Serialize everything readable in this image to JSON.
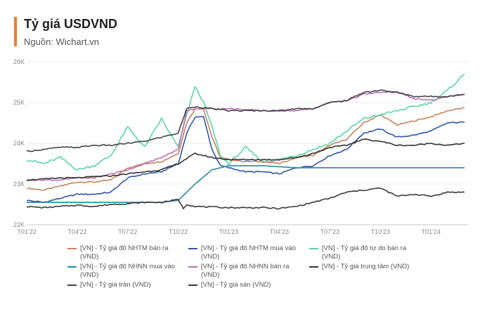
{
  "header": {
    "title": "Tỷ giá USDVND",
    "source": "Nguồn: Wichart.vn",
    "accent_color": "#f07a26"
  },
  "chart_data": {
    "type": "line",
    "title": "Tỷ giá USDVND",
    "xlabel": "",
    "ylabel": "",
    "ylim": [
      22000,
      26000
    ],
    "y_ticks": [
      22000,
      23000,
      24000,
      25000,
      26000
    ],
    "y_tick_labels": [
      "22K",
      "23K",
      "24K",
      "25K",
      "26K"
    ],
    "x_range": [
      "2022-01",
      "2024-05"
    ],
    "x_ticks": [
      "T01'22",
      "T04'22",
      "T07'22",
      "T10'22",
      "T01'23",
      "T04'23",
      "T07'23",
      "T10'23",
      "T01'24"
    ],
    "grid": true,
    "legend_position": "bottom",
    "series": [
      {
        "name": "[VN] - Tỷ giá đô NHTM bán ra (VND)",
        "color": "#c8845a",
        "points": [
          [
            0,
            22900
          ],
          [
            1,
            22850
          ],
          [
            2,
            22950
          ],
          [
            3,
            23050
          ],
          [
            4,
            23050
          ],
          [
            5,
            23100
          ],
          [
            6,
            23400
          ],
          [
            7,
            23500
          ],
          [
            8,
            23550
          ],
          [
            9,
            23750
          ],
          [
            9.5,
            24500
          ],
          [
            10,
            24850
          ],
          [
            10.5,
            24850
          ],
          [
            11,
            24150
          ],
          [
            11.5,
            23650
          ],
          [
            12,
            23600
          ],
          [
            13,
            23550
          ],
          [
            14,
            23550
          ],
          [
            15,
            23500
          ],
          [
            16,
            23650
          ],
          [
            17,
            23700
          ],
          [
            18,
            23950
          ],
          [
            19,
            24100
          ],
          [
            20,
            24500
          ],
          [
            21,
            24700
          ],
          [
            22,
            24450
          ],
          [
            23,
            24550
          ],
          [
            24,
            24650
          ],
          [
            25,
            24800
          ],
          [
            26,
            24870
          ]
        ]
      },
      {
        "name": "[VN] - Tỷ giá đô NHTM mua vào (VND)",
        "color": "#2d56a8",
        "points": [
          [
            0,
            22600
          ],
          [
            1,
            22550
          ],
          [
            2,
            22650
          ],
          [
            3,
            22750
          ],
          [
            4,
            22750
          ],
          [
            5,
            22800
          ],
          [
            6,
            23150
          ],
          [
            7,
            23250
          ],
          [
            8,
            23300
          ],
          [
            9,
            23500
          ],
          [
            9.5,
            24250
          ],
          [
            10,
            24650
          ],
          [
            10.5,
            24650
          ],
          [
            11,
            23850
          ],
          [
            11.5,
            23450
          ],
          [
            12,
            23400
          ],
          [
            13,
            23300
          ],
          [
            14,
            23300
          ],
          [
            15,
            23250
          ],
          [
            16,
            23400
          ],
          [
            17,
            23450
          ],
          [
            18,
            23700
          ],
          [
            19,
            23850
          ],
          [
            20,
            24250
          ],
          [
            21,
            24350
          ],
          [
            22,
            24150
          ],
          [
            23,
            24200
          ],
          [
            24,
            24300
          ],
          [
            25,
            24500
          ],
          [
            26,
            24520
          ]
        ]
      },
      {
        "name": "[VN] - Tỷ giá đô tự do bán ra (VND)",
        "color": "#56d7a6",
        "points": [
          [
            0,
            23600
          ],
          [
            1,
            23500
          ],
          [
            2,
            23650
          ],
          [
            3,
            23350
          ],
          [
            4,
            23450
          ],
          [
            5,
            23700
          ],
          [
            6,
            24400
          ],
          [
            7,
            23900
          ],
          [
            8,
            24600
          ],
          [
            9,
            23900
          ],
          [
            9.5,
            24700
          ],
          [
            10,
            25400
          ],
          [
            10.5,
            25000
          ],
          [
            11,
            24400
          ],
          [
            11.5,
            23700
          ],
          [
            12,
            23500
          ],
          [
            13,
            23900
          ],
          [
            14,
            23550
          ],
          [
            15,
            23600
          ],
          [
            16,
            23700
          ],
          [
            17,
            23850
          ],
          [
            18,
            24000
          ],
          [
            19,
            24300
          ],
          [
            20,
            24600
          ],
          [
            21,
            24700
          ],
          [
            22,
            24800
          ],
          [
            23,
            24900
          ],
          [
            24,
            25000
          ],
          [
            25,
            25300
          ],
          [
            26,
            25700
          ]
        ]
      },
      {
        "name": "[VN] - Tỷ giá đô NHNN mua vào (VND)",
        "color": "#2a87a4",
        "points": [
          [
            0,
            22550
          ],
          [
            4,
            22550
          ],
          [
            8,
            22550
          ],
          [
            9,
            22600
          ],
          [
            10,
            23000
          ],
          [
            11,
            23350
          ],
          [
            12,
            23450
          ],
          [
            14,
            23450
          ],
          [
            16,
            23400
          ],
          [
            18,
            23400
          ],
          [
            20,
            23400
          ],
          [
            22,
            23400
          ],
          [
            26,
            23400
          ]
        ]
      },
      {
        "name": "[VN] - Tỷ giá đô NHNN bán ra (VND)",
        "color": "#b86fb8",
        "points": [
          [
            0,
            23100
          ],
          [
            2,
            23100
          ],
          [
            3,
            23150
          ],
          [
            4,
            23150
          ],
          [
            6,
            23350
          ],
          [
            7,
            23500
          ],
          [
            8,
            23650
          ],
          [
            9,
            23850
          ],
          [
            9.5,
            24800
          ],
          [
            10,
            24850
          ],
          [
            12,
            24850
          ],
          [
            14,
            24800
          ],
          [
            16,
            24800
          ],
          [
            17,
            24850
          ],
          [
            18,
            25000
          ],
          [
            19,
            25050
          ],
          [
            20,
            25200
          ],
          [
            21,
            25250
          ],
          [
            22,
            25250
          ],
          [
            23,
            25100
          ],
          [
            24,
            25050
          ],
          [
            25,
            25150
          ],
          [
            26,
            25200
          ]
        ]
      },
      {
        "name": "[VN] - Tỷ giá trung tâm (VND)",
        "color": "#333333",
        "points": [
          [
            0,
            23100
          ],
          [
            1,
            23120
          ],
          [
            2,
            23150
          ],
          [
            3,
            23150
          ],
          [
            4,
            23180
          ],
          [
            5,
            23200
          ],
          [
            6,
            23250
          ],
          [
            7,
            23300
          ],
          [
            8,
            23350
          ],
          [
            9,
            23500
          ],
          [
            10,
            23750
          ],
          [
            11,
            23650
          ],
          [
            12,
            23600
          ],
          [
            13,
            23600
          ],
          [
            14,
            23600
          ],
          [
            15,
            23600
          ],
          [
            16,
            23650
          ],
          [
            17,
            23750
          ],
          [
            18,
            23900
          ],
          [
            19,
            23950
          ],
          [
            20,
            24100
          ],
          [
            21,
            24050
          ],
          [
            22,
            23950
          ],
          [
            23,
            23950
          ],
          [
            24,
            24000
          ],
          [
            25,
            23950
          ],
          [
            26,
            24000
          ]
        ]
      },
      {
        "name": "[VN] - Tỷ giá trần (VND)",
        "color": "#444444",
        "points": [
          [
            0,
            23800
          ],
          [
            1,
            23850
          ],
          [
            2,
            23900
          ],
          [
            3,
            23900
          ],
          [
            4,
            23950
          ],
          [
            5,
            23950
          ],
          [
            6,
            24000
          ],
          [
            7,
            24050
          ],
          [
            8,
            24150
          ],
          [
            9,
            24250
          ],
          [
            9.5,
            24850
          ],
          [
            10,
            24900
          ],
          [
            11,
            24850
          ],
          [
            12,
            24800
          ],
          [
            13,
            24800
          ],
          [
            14,
            24800
          ],
          [
            15,
            24800
          ],
          [
            16,
            24850
          ],
          [
            17,
            24850
          ],
          [
            18,
            25000
          ],
          [
            19,
            25050
          ],
          [
            20,
            25250
          ],
          [
            21,
            25300
          ],
          [
            22,
            25250
          ],
          [
            23,
            25150
          ],
          [
            24,
            25150
          ],
          [
            25,
            25150
          ],
          [
            26,
            25200
          ]
        ]
      },
      {
        "name": "[VN] - Tỷ giá sàn (VND)",
        "color": "#3a3a3a",
        "points": [
          [
            0,
            22450
          ],
          [
            1,
            22420
          ],
          [
            2,
            22450
          ],
          [
            3,
            22480
          ],
          [
            4,
            22450
          ],
          [
            5,
            22500
          ],
          [
            6,
            22520
          ],
          [
            7,
            22550
          ],
          [
            8,
            22550
          ],
          [
            9,
            22620
          ],
          [
            9.3,
            22400
          ],
          [
            9.5,
            22500
          ],
          [
            10,
            22450
          ],
          [
            12,
            22420
          ],
          [
            13,
            22420
          ],
          [
            14,
            22420
          ],
          [
            15,
            22400
          ],
          [
            16,
            22450
          ],
          [
            17,
            22550
          ],
          [
            18,
            22650
          ],
          [
            19,
            22800
          ],
          [
            20,
            22850
          ],
          [
            21,
            22900
          ],
          [
            22,
            22700
          ],
          [
            23,
            22750
          ],
          [
            24,
            22700
          ],
          [
            25,
            22800
          ],
          [
            26,
            22800
          ]
        ]
      }
    ]
  }
}
